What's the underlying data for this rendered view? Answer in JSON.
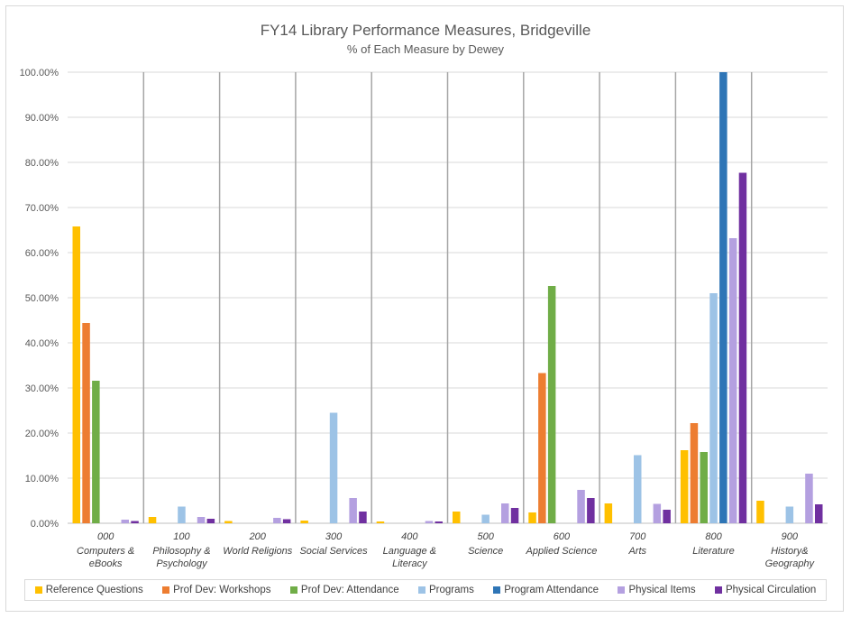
{
  "chart_data": {
    "type": "bar",
    "title": "FY14 Library Performance Measures, Bridgeville",
    "subtitle": "% of Each Measure by Dewey",
    "ylim": [
      0,
      100
    ],
    "yticks": [
      "0.00%",
      "10.00%",
      "20.00%",
      "30.00%",
      "40.00%",
      "50.00%",
      "60.00%",
      "70.00%",
      "80.00%",
      "90.00%",
      "100.00%"
    ],
    "categories": [
      {
        "code": "000",
        "name": [
          "Computers &",
          "eBooks"
        ]
      },
      {
        "code": "100",
        "name": [
          "Philosophy &",
          "Psychology"
        ]
      },
      {
        "code": "200",
        "name": [
          "World Religions"
        ]
      },
      {
        "code": "300",
        "name": [
          "Social Services"
        ]
      },
      {
        "code": "400",
        "name": [
          "Language &",
          "Literacy"
        ]
      },
      {
        "code": "500",
        "name": [
          "Science"
        ]
      },
      {
        "code": "600",
        "name": [
          "Applied Science"
        ]
      },
      {
        "code": "700",
        "name": [
          "Arts"
        ]
      },
      {
        "code": "800",
        "name": [
          "Literature"
        ]
      },
      {
        "code": "900",
        "name": [
          "History&",
          "Geography"
        ]
      }
    ],
    "series": [
      {
        "name": "Reference Questions",
        "color": "#ffc000",
        "values": [
          65.8,
          1.4,
          0.5,
          0.6,
          0.4,
          2.6,
          2.4,
          4.4,
          16.2,
          5.0
        ]
      },
      {
        "name": "Prof Dev: Workshops",
        "color": "#ed7d31",
        "values": [
          44.4,
          0,
          0,
          0,
          0,
          0,
          33.3,
          0,
          22.2,
          0
        ]
      },
      {
        "name": "Prof Dev: Attendance",
        "color": "#70ad47",
        "values": [
          31.6,
          0,
          0,
          0,
          0,
          0,
          52.6,
          0,
          15.8,
          0
        ]
      },
      {
        "name": "Programs",
        "color": "#9dc3e6",
        "values": [
          0,
          3.7,
          0,
          24.5,
          0,
          1.9,
          0,
          15.1,
          51.0,
          3.7
        ]
      },
      {
        "name": "Program Attendance",
        "color": "#2e75b6",
        "values": [
          0,
          0,
          0,
          0,
          0,
          0,
          0,
          0,
          100,
          0
        ]
      },
      {
        "name": "Physical Items",
        "color": "#b4a0e0",
        "values": [
          0.8,
          1.4,
          1.2,
          5.6,
          0.5,
          4.4,
          7.4,
          4.3,
          63.2,
          11.0
        ]
      },
      {
        "name": "Physical Circulation",
        "color": "#7030a0",
        "values": [
          0.5,
          1.0,
          0.9,
          2.6,
          0.4,
          3.4,
          5.6,
          3.0,
          77.7,
          4.2
        ]
      }
    ]
  }
}
